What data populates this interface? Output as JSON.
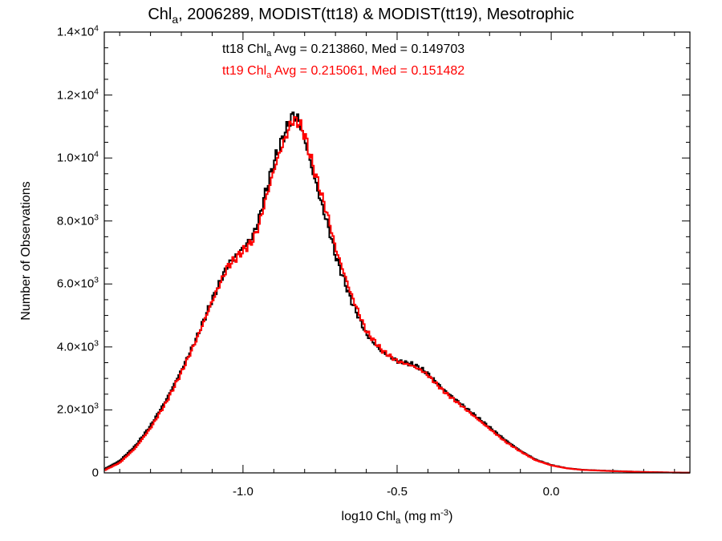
{
  "chart_data": {
    "type": "line",
    "step": true,
    "title": {
      "prefix": "Chl",
      "prefix_sub": "a",
      "rest": ", 2006289, MODIST(tt18) & MODIST(tt19), Mesotrophic"
    },
    "xlabel": {
      "prefix": "log10 Chl",
      "sub": "a",
      "middle": " (mg m",
      "sup": "-3",
      "suffix": ")"
    },
    "ylabel": "Number of Observations",
    "xlim": [
      -1.45,
      0.45
    ],
    "ylim": [
      0,
      14000
    ],
    "grid": false,
    "x_ticks": [
      {
        "value": -1.0,
        "label": "-1.0"
      },
      {
        "value": -0.5,
        "label": "-0.5"
      },
      {
        "value": 0.0,
        "label": "0.0"
      }
    ],
    "y_ticks": [
      {
        "value": 0,
        "mant": "0",
        "exp": ""
      },
      {
        "value": 2000,
        "mant": "2.0×10",
        "exp": "3"
      },
      {
        "value": 4000,
        "mant": "4.0×10",
        "exp": "3"
      },
      {
        "value": 6000,
        "mant": "6.0×10",
        "exp": "3"
      },
      {
        "value": 8000,
        "mant": "8.0×10",
        "exp": "3"
      },
      {
        "value": 10000,
        "mant": "1.0×10",
        "exp": "4"
      },
      {
        "value": 12000,
        "mant": "1.2×10",
        "exp": "4"
      },
      {
        "value": 14000,
        "mant": "1.4×10",
        "exp": "4"
      }
    ],
    "annotations": [
      {
        "name": "tt18",
        "label_pre": "tt18 Chl",
        "label_sub": "a",
        "label_post": " Avg = 0.213860, Med = 0.149703",
        "color": "#000000"
      },
      {
        "name": "tt19",
        "label_pre": "tt19 Chl",
        "label_sub": "a",
        "label_post": " Avg = 0.215061, Med = 0.151482",
        "color": "#ff0000"
      }
    ],
    "series": [
      {
        "name": "tt18",
        "color": "#000000",
        "points": [
          [
            -1.45,
            120
          ],
          [
            -1.4,
            380
          ],
          [
            -1.35,
            850
          ],
          [
            -1.3,
            1500
          ],
          [
            -1.25,
            2300
          ],
          [
            -1.2,
            3250
          ],
          [
            -1.15,
            4300
          ],
          [
            -1.1,
            5500
          ],
          [
            -1.05,
            6600
          ],
          [
            -1.0,
            7150
          ],
          [
            -0.97,
            7500
          ],
          [
            -0.95,
            8000
          ],
          [
            -0.93,
            8800
          ],
          [
            -0.9,
            9850
          ],
          [
            -0.88,
            10400
          ],
          [
            -0.86,
            10900
          ],
          [
            -0.84,
            11350
          ],
          [
            -0.82,
            11250
          ],
          [
            -0.8,
            10600
          ],
          [
            -0.78,
            9800
          ],
          [
            -0.75,
            8700
          ],
          [
            -0.72,
            7700
          ],
          [
            -0.7,
            6900
          ],
          [
            -0.65,
            5500
          ],
          [
            -0.6,
            4400
          ],
          [
            -0.55,
            3850
          ],
          [
            -0.5,
            3550
          ],
          [
            -0.45,
            3450
          ],
          [
            -0.42,
            3300
          ],
          [
            -0.4,
            3150
          ],
          [
            -0.35,
            2650
          ],
          [
            -0.3,
            2250
          ],
          [
            -0.25,
            1850
          ],
          [
            -0.2,
            1450
          ],
          [
            -0.15,
            1050
          ],
          [
            -0.1,
            700
          ],
          [
            -0.05,
            420
          ],
          [
            0.0,
            250
          ],
          [
            0.05,
            150
          ],
          [
            0.1,
            100
          ],
          [
            0.2,
            60
          ],
          [
            0.3,
            30
          ],
          [
            0.4,
            10
          ],
          [
            0.45,
            5
          ]
        ]
      },
      {
        "name": "tt19",
        "color": "#ff0000",
        "points": [
          [
            -1.45,
            80
          ],
          [
            -1.4,
            320
          ],
          [
            -1.35,
            780
          ],
          [
            -1.3,
            1420
          ],
          [
            -1.25,
            2220
          ],
          [
            -1.2,
            3180
          ],
          [
            -1.15,
            4250
          ],
          [
            -1.1,
            5450
          ],
          [
            -1.05,
            6550
          ],
          [
            -1.0,
            7050
          ],
          [
            -0.97,
            7350
          ],
          [
            -0.95,
            7800
          ],
          [
            -0.93,
            8550
          ],
          [
            -0.9,
            9600
          ],
          [
            -0.88,
            10200
          ],
          [
            -0.86,
            10700
          ],
          [
            -0.84,
            11200
          ],
          [
            -0.82,
            11150
          ],
          [
            -0.8,
            10750
          ],
          [
            -0.78,
            10000
          ],
          [
            -0.75,
            9000
          ],
          [
            -0.72,
            8000
          ],
          [
            -0.7,
            7150
          ],
          [
            -0.65,
            5700
          ],
          [
            -0.6,
            4500
          ],
          [
            -0.55,
            3900
          ],
          [
            -0.5,
            3550
          ],
          [
            -0.45,
            3400
          ],
          [
            -0.42,
            3250
          ],
          [
            -0.4,
            3100
          ],
          [
            -0.35,
            2600
          ],
          [
            -0.3,
            2200
          ],
          [
            -0.25,
            1800
          ],
          [
            -0.2,
            1400
          ],
          [
            -0.15,
            1000
          ],
          [
            -0.1,
            680
          ],
          [
            -0.05,
            400
          ],
          [
            0.0,
            240
          ],
          [
            0.05,
            145
          ],
          [
            0.1,
            95
          ],
          [
            0.2,
            55
          ],
          [
            0.3,
            28
          ],
          [
            0.4,
            10
          ],
          [
            0.45,
            5
          ]
        ]
      }
    ]
  }
}
